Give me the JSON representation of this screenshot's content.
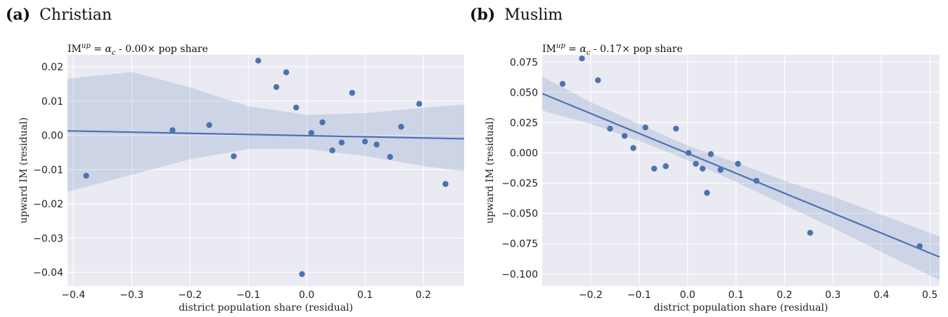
{
  "chart_data": [
    {
      "type": "scatter",
      "panel_label": "(a)",
      "title": "Christian",
      "annotation": "IM^up = α_c - 0.00× pop share",
      "xlabel": "district population share (residual)",
      "ylabel": "upward IM (residual)",
      "xlim": [
        -0.41,
        0.27
      ],
      "ylim": [
        -0.044,
        0.0235
      ],
      "xticks": [
        -0.4,
        -0.3,
        -0.2,
        -0.1,
        0.0,
        0.1,
        0.2
      ],
      "xtick_labels": [
        "−0.4",
        "−0.3",
        "−0.2",
        "−0.1",
        "0.0",
        "0.1",
        "0.2"
      ],
      "yticks": [
        0.02,
        0.01,
        0.0,
        -0.01,
        -0.02,
        -0.03,
        -0.04
      ],
      "ytick_labels": [
        "0.02",
        "0.01",
        "0.00",
        "−0.01",
        "−0.02",
        "−0.03",
        "−0.04"
      ],
      "grid": true,
      "points": [
        [
          -0.378,
          -0.0118
        ],
        [
          -0.23,
          0.0015
        ],
        [
          -0.167,
          0.003
        ],
        [
          -0.125,
          -0.0061
        ],
        [
          -0.083,
          0.0218
        ],
        [
          -0.052,
          0.0141
        ],
        [
          -0.035,
          0.0184
        ],
        [
          -0.018,
          0.0081
        ],
        [
          -0.008,
          -0.0405
        ],
        [
          0.008,
          0.0007
        ],
        [
          0.027,
          0.0038
        ],
        [
          0.044,
          -0.0044
        ],
        [
          0.06,
          -0.0021
        ],
        [
          0.078,
          0.0124
        ],
        [
          0.1,
          -0.0018
        ],
        [
          0.12,
          -0.0027
        ],
        [
          0.143,
          -0.0063
        ],
        [
          0.162,
          0.0025
        ],
        [
          0.193,
          0.0092
        ],
        [
          0.238,
          -0.0142
        ]
      ],
      "fit_line": [
        [
          -0.41,
          0.0013
        ],
        [
          0.27,
          -0.001
        ]
      ],
      "ci_band": {
        "x": [
          -0.41,
          -0.3,
          -0.2,
          -0.1,
          0.0,
          0.1,
          0.2,
          0.27
        ],
        "upper": [
          0.0165,
          0.0185,
          0.014,
          0.0085,
          0.006,
          0.0065,
          0.008,
          0.009
        ],
        "lower": [
          -0.0165,
          -0.0115,
          -0.007,
          -0.004,
          -0.004,
          -0.006,
          -0.009,
          -0.0105
        ]
      }
    },
    {
      "type": "scatter",
      "panel_label": "(b)",
      "title": "Muslim",
      "annotation": "IM^up = α_c - 0.17× pop share",
      "xlabel": "district population share (residual)",
      "ylabel": "upward IM (residual)",
      "xlim": [
        -0.3,
        0.52
      ],
      "ylim": [
        -0.11,
        0.081
      ],
      "xticks": [
        -0.2,
        -0.1,
        0.0,
        0.1,
        0.2,
        0.3,
        0.4,
        0.5
      ],
      "xtick_labels": [
        "−0.2",
        "−0.1",
        "0.0",
        "0.1",
        "0.2",
        "0.3",
        "0.4",
        "0.5"
      ],
      "yticks": [
        0.075,
        0.05,
        0.025,
        0.0,
        -0.025,
        -0.05,
        -0.075,
        -0.1
      ],
      "ytick_labels": [
        "0.075",
        "0.050",
        "0.025",
        "0.000",
        "−0.025",
        "−0.050",
        "−0.075",
        "−0.100"
      ],
      "grid": true,
      "points": [
        [
          -0.258,
          0.057
        ],
        [
          -0.218,
          0.078
        ],
        [
          -0.185,
          0.06
        ],
        [
          -0.16,
          0.02
        ],
        [
          -0.13,
          0.014
        ],
        [
          -0.112,
          0.004
        ],
        [
          -0.087,
          0.021
        ],
        [
          -0.069,
          -0.013
        ],
        [
          -0.045,
          -0.011
        ],
        [
          -0.024,
          0.02
        ],
        [
          0.002,
          0.0
        ],
        [
          0.017,
          -0.009
        ],
        [
          0.031,
          -0.013
        ],
        [
          0.04,
          -0.033
        ],
        [
          0.048,
          -0.001
        ],
        [
          0.068,
          -0.014
        ],
        [
          0.104,
          -0.009
        ],
        [
          0.142,
          -0.023
        ],
        [
          0.253,
          -0.066
        ],
        [
          0.479,
          -0.077
        ]
      ],
      "fit_line": [
        [
          -0.3,
          0.049
        ],
        [
          0.52,
          -0.086
        ]
      ],
      "ci_band": {
        "x": [
          -0.3,
          -0.2,
          -0.1,
          0.0,
          0.1,
          0.2,
          0.3,
          0.4,
          0.52
        ],
        "upper": [
          0.063,
          0.042,
          0.024,
          0.006,
          -0.008,
          -0.023,
          -0.036,
          -0.051,
          -0.069
        ],
        "lower": [
          0.035,
          0.024,
          0.01,
          -0.006,
          -0.024,
          -0.043,
          -0.062,
          -0.082,
          -0.105
        ]
      }
    }
  ]
}
